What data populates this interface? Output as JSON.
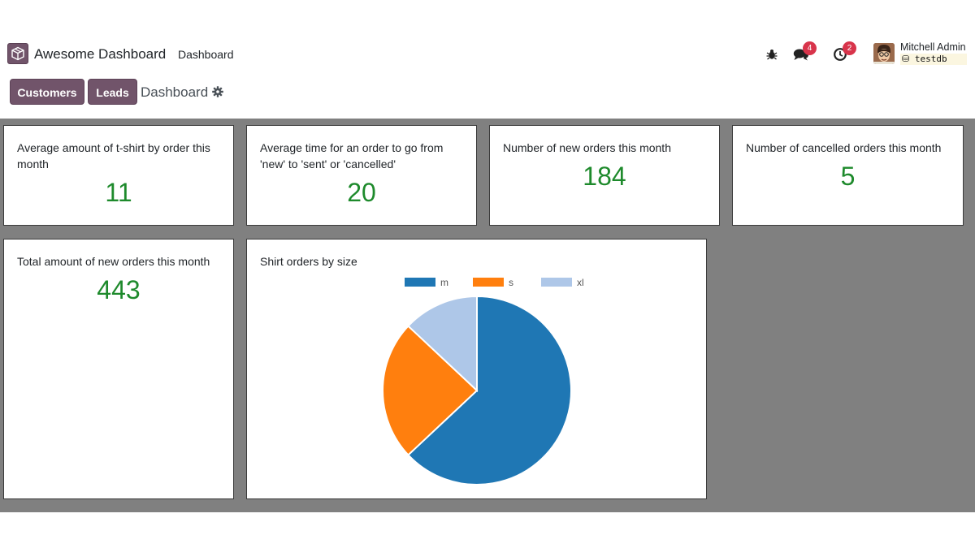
{
  "navbar": {
    "app_name": "Awesome Dashboard",
    "menu_item": "Dashboard",
    "chat_badge": "4",
    "activity_badge": "2",
    "user_name": "Mitchell Admin",
    "db_name": "testdb"
  },
  "control_panel": {
    "buttons": [
      "Customers",
      "Leads"
    ],
    "breadcrumb": "Dashboard",
    "accent_color": "#71546a"
  },
  "cards": [
    {
      "title": "Average amount of t-shirt by order this month",
      "value": "11"
    },
    {
      "title": "Average time for an order to go from 'new' to 'sent' or 'cancelled'",
      "value": "20"
    },
    {
      "title": "Number of new orders this month",
      "value": "184"
    },
    {
      "title": "Number of cancelled orders this month",
      "value": "5"
    },
    {
      "title": "Total amount of new orders this month",
      "value": "443"
    }
  ],
  "chart_card": {
    "title": "Shirt orders by size"
  },
  "chart_data": {
    "type": "pie",
    "categories": [
      "m",
      "s",
      "xl"
    ],
    "values": [
      63,
      24,
      13
    ],
    "colors": [
      "#1f77b4",
      "#ff7f0e",
      "#aec7e8"
    ],
    "legend_position": "top"
  },
  "colors": {
    "value_color": "#1e8a2c",
    "content_background": "#808080"
  }
}
